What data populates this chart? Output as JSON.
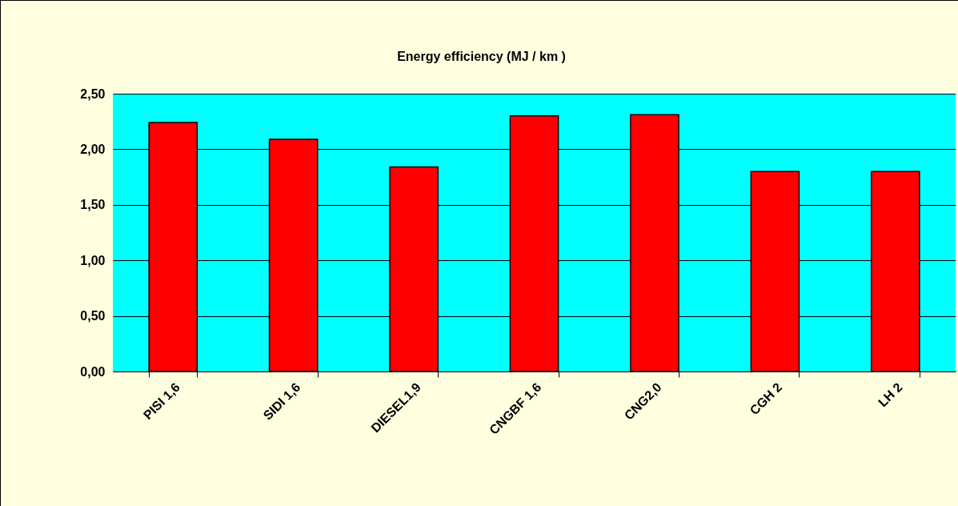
{
  "chart_data": {
    "type": "bar",
    "title": "Energy efficiency (MJ / km )",
    "categories": [
      "PISI 1,6",
      "SIDI 1,6",
      "DIESEL1,9",
      "CNGBF 1,6",
      "CNG2,0",
      "CGH 2",
      "LH 2"
    ],
    "values": [
      2.24,
      2.09,
      1.84,
      2.3,
      2.31,
      1.8,
      1.8
    ],
    "color": "#ff0000",
    "ylim": [
      0,
      2.5
    ],
    "yticks": [
      {
        "value": 0,
        "label": "0,00"
      },
      {
        "value": 0.5,
        "label": "0,50"
      },
      {
        "value": 1,
        "label": "1,00"
      },
      {
        "value": 1.5,
        "label": "1,50"
      },
      {
        "value": 2,
        "label": "2,00"
      },
      {
        "value": 2.5,
        "label": "2,50"
      }
    ],
    "grid": "y"
  }
}
